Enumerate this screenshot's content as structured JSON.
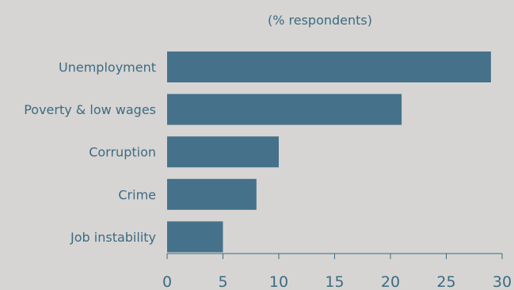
{
  "chart_data": {
    "type": "bar",
    "orientation": "horizontal",
    "title": "(% respondents)",
    "categories": [
      "Unemployment",
      "Poverty & low wages",
      "Corruption",
      "Crime",
      "Job instability"
    ],
    "values": [
      29,
      21,
      10,
      8,
      5
    ],
    "xlim": [
      0,
      30
    ],
    "xticks": [
      0,
      5,
      10,
      15,
      20,
      25,
      30
    ],
    "grid": false,
    "legend": "none",
    "colors": {
      "bar": "#45728a",
      "text": "#3c6b82",
      "background": "#d6d5d3"
    }
  }
}
